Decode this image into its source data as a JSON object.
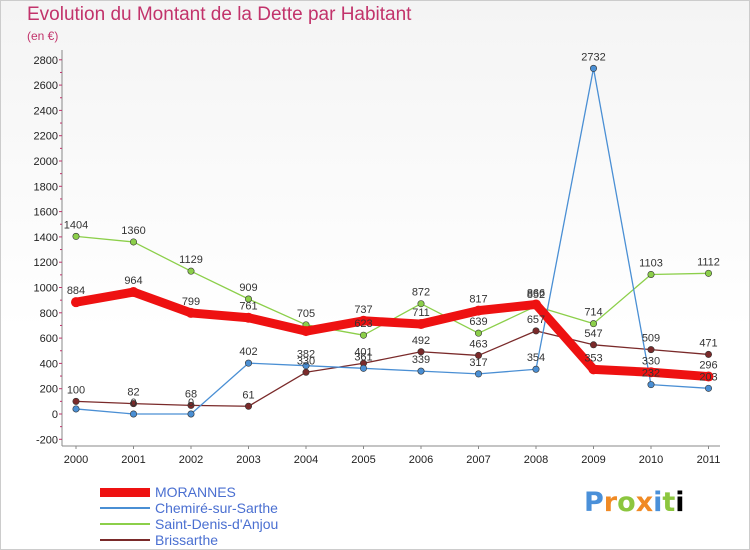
{
  "title": "Evolution du Montant de la Dette par Habitant",
  "subtitle": "(en €)",
  "logo": [
    "P",
    "r",
    "o",
    "x",
    "i",
    "t",
    "i"
  ],
  "chart_data": {
    "type": "line",
    "title": "Evolution du Montant de la Dette par Habitant",
    "ylabel": "(en €)",
    "xlabel": "",
    "categories": [
      "2000",
      "2001",
      "2002",
      "2003",
      "2004",
      "2005",
      "2006",
      "2007",
      "2008",
      "2009",
      "2010",
      "2011"
    ],
    "ylim": [
      -200,
      2800
    ],
    "yticks": [
      "-200",
      "0",
      "200",
      "400",
      "600",
      "800",
      "1000",
      "1200",
      "1400",
      "1600",
      "1800",
      "2000",
      "2200",
      "2400",
      "2600",
      "2800"
    ],
    "grid": false,
    "legend_position": "bottom-left",
    "series": [
      {
        "name": "MORANNES",
        "color": "#ee1111",
        "values": [
          884,
          964,
          799,
          761,
          655,
          737,
          711,
          817,
          866,
          353,
          330,
          296
        ],
        "labels": [
          "884",
          "964",
          "799",
          "761",
          "",
          "737",
          "711",
          "817",
          "866",
          "353",
          "330",
          "296"
        ]
      },
      {
        "name": "Chemiré-sur-Sarthe",
        "color": "#4a8fd4",
        "values": [
          40,
          0,
          0,
          402,
          382,
          361,
          339,
          317,
          354,
          2732,
          232,
          203
        ],
        "labels": [
          "",
          "0",
          "0",
          "402",
          "382",
          "361",
          "339",
          "317",
          "354",
          "2732",
          "232",
          "203"
        ]
      },
      {
        "name": "Saint-Denis-d'Anjou",
        "color": "#8ccf4a",
        "values": [
          1404,
          1360,
          1129,
          909,
          705,
          623,
          872,
          639,
          852,
          714,
          1103,
          1112
        ],
        "labels": [
          "1404",
          "1360",
          "1129",
          "909",
          "705",
          "623",
          "872",
          "639",
          "852",
          "714",
          "1103",
          "1112"
        ]
      },
      {
        "name": "Brissarthe",
        "color": "#7a2a2a",
        "values": [
          100,
          82,
          68,
          61,
          330,
          401,
          492,
          463,
          657,
          547,
          509,
          471
        ],
        "labels": [
          "100",
          "82",
          "68",
          "61",
          "330",
          "401",
          "492",
          "463",
          "657",
          "547",
          "509",
          "471"
        ]
      }
    ]
  }
}
